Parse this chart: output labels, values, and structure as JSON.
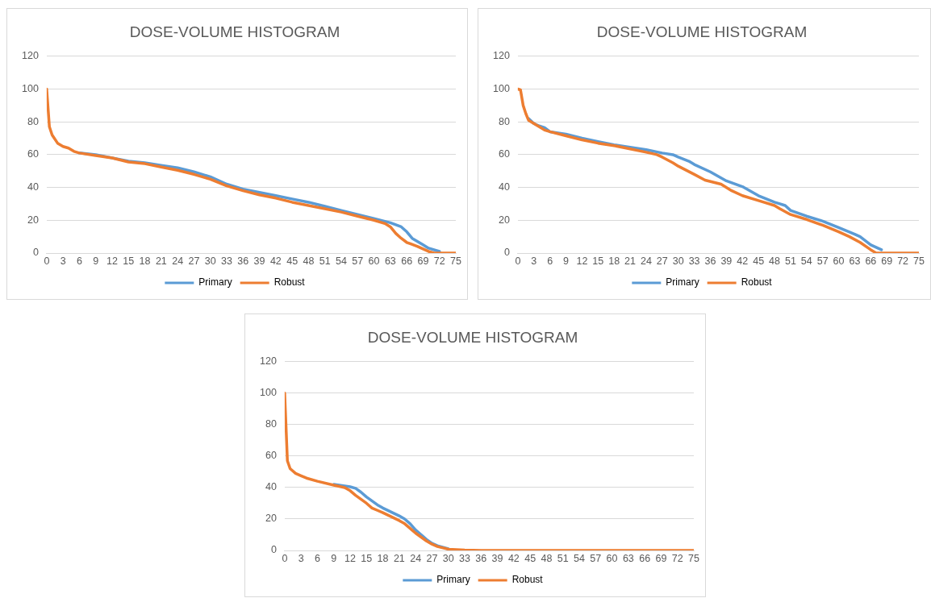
{
  "chart_data": [
    {
      "type": "line",
      "title": "DOSE-VOLUME HISTOGRAM",
      "xlim": [
        0,
        75
      ],
      "xticks": [
        0,
        3,
        6,
        9,
        12,
        15,
        18,
        21,
        24,
        27,
        30,
        33,
        36,
        39,
        42,
        45,
        48,
        51,
        54,
        57,
        60,
        63,
        66,
        69,
        72,
        75
      ],
      "ylim": [
        0,
        120
      ],
      "yticks": [
        0,
        20,
        40,
        60,
        80,
        100,
        120
      ],
      "grid": "y",
      "legend": "bottom",
      "marker": "none",
      "series": [
        {
          "name": "Primary",
          "color": "#5b9bd5",
          "x": [
            6,
            9,
            15,
            18,
            21,
            24,
            27,
            30,
            33,
            36,
            39,
            42,
            45,
            48,
            51,
            54,
            57,
            60,
            63,
            65,
            66,
            67,
            69,
            70,
            72
          ],
          "values": [
            61,
            60,
            56,
            55,
            53.5,
            52,
            49.5,
            46.5,
            42,
            39,
            37,
            35,
            33,
            31,
            28.5,
            26,
            23.5,
            21,
            18.5,
            16,
            13,
            9,
            5,
            3,
            1
          ]
        },
        {
          "name": "Robust",
          "color": "#ed7d31",
          "x": [
            0,
            0.5,
            1,
            2,
            3,
            4,
            5,
            6,
            9,
            12,
            15,
            18,
            21,
            24,
            27,
            30,
            33,
            36,
            39,
            42,
            45,
            48,
            51,
            54,
            57,
            60,
            62,
            63,
            64,
            65,
            66,
            68,
            69,
            70,
            71,
            75
          ],
          "values": [
            100,
            77,
            72,
            67,
            65,
            64,
            62,
            61,
            59.5,
            58,
            55.5,
            54.5,
            52.5,
            50.5,
            48,
            45,
            41,
            38,
            35.5,
            33.5,
            31,
            29,
            27,
            25,
            22.5,
            20,
            18,
            16,
            12,
            9,
            6.5,
            4,
            2.5,
            1,
            0,
            0
          ]
        }
      ]
    },
    {
      "type": "line",
      "title": "DOSE-VOLUME HISTOGRAM",
      "xlim": [
        0,
        75
      ],
      "xticks": [
        0,
        3,
        6,
        9,
        12,
        15,
        18,
        21,
        24,
        27,
        30,
        33,
        36,
        39,
        42,
        45,
        48,
        51,
        54,
        57,
        60,
        63,
        66,
        69,
        72,
        75
      ],
      "ylim": [
        0,
        120
      ],
      "yticks": [
        0,
        20,
        40,
        60,
        80,
        100,
        120
      ],
      "grid": "y",
      "legend": "bottom",
      "marker": "none",
      "series": [
        {
          "name": "Primary",
          "color": "#5b9bd5",
          "x": [
            2,
            3,
            4,
            5,
            6,
            9,
            12,
            15,
            18,
            21,
            24,
            27,
            29,
            30,
            32,
            33,
            36,
            39,
            42,
            45,
            48,
            50,
            51,
            54,
            57,
            60,
            63,
            64,
            66,
            68
          ],
          "values": [
            82,
            79,
            77.5,
            76.5,
            74,
            72.5,
            70,
            68,
            66,
            64.5,
            63,
            61,
            60,
            58.5,
            56,
            54,
            49.5,
            44,
            40.5,
            35,
            31,
            29,
            26,
            22.5,
            19.5,
            15.5,
            11.5,
            10,
            5,
            2
          ]
        },
        {
          "name": "Robust",
          "color": "#ed7d31",
          "x": [
            0,
            0.5,
            1,
            1.5,
            2,
            3,
            4,
            5,
            6,
            9,
            12,
            15,
            18,
            21,
            24,
            26,
            27,
            29,
            30,
            33,
            35,
            38,
            40,
            42,
            45,
            48,
            49,
            51,
            54,
            57,
            60,
            62,
            64,
            66,
            67,
            75
          ],
          "values": [
            100,
            99.5,
            90,
            85,
            81,
            79,
            77,
            75,
            74,
            71.5,
            69,
            67,
            65.5,
            63.5,
            61.5,
            60,
            58.5,
            55,
            53,
            48,
            44.5,
            42,
            38,
            35,
            32,
            29,
            27,
            23.5,
            20.5,
            17,
            13,
            10,
            6.5,
            2,
            0,
            0
          ]
        }
      ]
    },
    {
      "type": "line",
      "title": "DOSE-VOLUME HISTOGRAM",
      "xlim": [
        0,
        75
      ],
      "xticks": [
        0,
        3,
        6,
        9,
        12,
        15,
        18,
        21,
        24,
        27,
        30,
        33,
        36,
        39,
        42,
        45,
        48,
        51,
        54,
        57,
        60,
        63,
        66,
        69,
        72,
        75
      ],
      "ylim": [
        0,
        120
      ],
      "yticks": [
        0,
        20,
        40,
        60,
        80,
        100,
        120
      ],
      "grid": "y",
      "legend": "bottom",
      "marker": "none",
      "series": [
        {
          "name": "Primary",
          "color": "#5b9bd5",
          "x": [
            9,
            12,
            13,
            14,
            15,
            17,
            18,
            21,
            22,
            23,
            24,
            26,
            27,
            28,
            30
          ],
          "values": [
            42,
            40.5,
            39.5,
            37,
            34,
            29,
            27,
            22,
            20,
            17,
            13,
            7,
            4.5,
            3,
            1
          ]
        },
        {
          "name": "Robust",
          "color": "#ed7d31",
          "x": [
            0,
            0.5,
            1,
            2,
            3,
            4,
            6,
            9,
            11,
            12,
            13,
            15,
            16,
            17,
            18,
            21,
            22,
            23,
            24,
            26,
            27,
            28,
            30,
            33,
            36,
            75
          ],
          "values": [
            100,
            57,
            52,
            49,
            47.5,
            46,
            44,
            41.5,
            40,
            38,
            35,
            30,
            27,
            25.5,
            24,
            19,
            17,
            14,
            11,
            6,
            4,
            2.5,
            0.8,
            0.2,
            0,
            0
          ]
        }
      ]
    }
  ]
}
